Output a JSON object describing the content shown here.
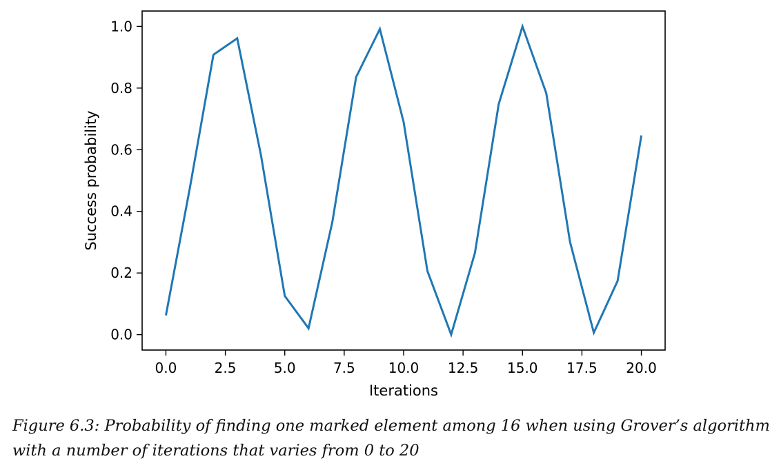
{
  "chart_data": {
    "type": "line",
    "title": "",
    "xlabel": "Iterations",
    "ylabel": "Success probability",
    "xlim": [
      -1,
      21
    ],
    "ylim": [
      -0.05,
      1.05
    ],
    "grid": false,
    "x_ticks": [
      "0.0",
      "2.5",
      "5.0",
      "7.5",
      "10.0",
      "12.5",
      "15.0",
      "17.5",
      "20.0"
    ],
    "x_tick_values": [
      0,
      2.5,
      5,
      7.5,
      10,
      12.5,
      15,
      17.5,
      20
    ],
    "y_ticks": [
      "0.0",
      "0.2",
      "0.4",
      "0.6",
      "0.8",
      "1.0"
    ],
    "y_tick_values": [
      0,
      0.2,
      0.4,
      0.6,
      0.8,
      1.0
    ],
    "series": [
      {
        "color": "#1f77b4",
        "x": [
          0,
          1,
          2,
          3,
          4,
          5,
          6,
          7,
          8,
          9,
          10,
          11,
          12,
          13,
          14,
          15,
          16,
          17,
          18,
          19,
          20
        ],
        "y": [
          0.0625,
          0.4727,
          0.9084,
          0.9613,
          0.5817,
          0.1254,
          0.0206,
          0.365,
          0.8354,
          0.9916,
          0.6897,
          0.2067,
          0.0002,
          0.2654,
          0.7482,
          0.9999,
          0.7834,
          0.3006,
          0.0062,
          0.174,
          0.6463
        ]
      }
    ]
  },
  "caption": {
    "line1": "Figure 6.3: Probability of finding one marked element among 16 when using Grover’s algorithm",
    "line2": "with a number of iterations that varies from 0  to 20"
  }
}
